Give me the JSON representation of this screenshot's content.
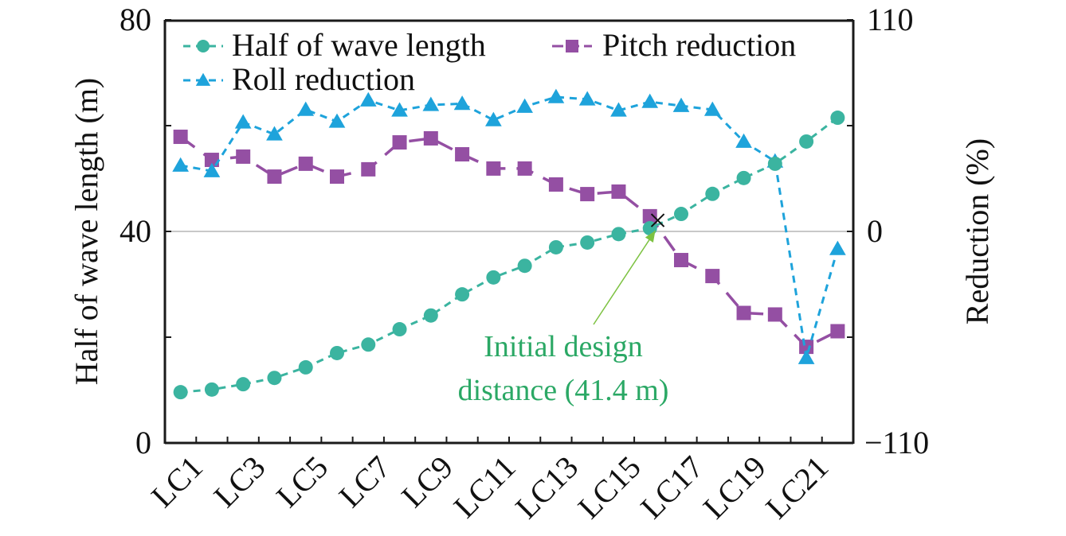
{
  "chart_data": {
    "type": "line",
    "title": "",
    "xlabel": "",
    "categories": [
      "LC1",
      "LC2",
      "LC3",
      "LC4",
      "LC5",
      "LC6",
      "LC7",
      "LC8",
      "LC9",
      "LC10",
      "LC11",
      "LC12",
      "LC13",
      "LC14",
      "LC15",
      "LC16",
      "LC17",
      "LC18",
      "LC19",
      "LC20",
      "LC21",
      "LC22"
    ],
    "x_tick_labels": [
      "LC1",
      "LC3",
      "LC5",
      "LC7",
      "LC9",
      "LC11",
      "LC13",
      "LC15",
      "LC17",
      "LC19",
      "LC21"
    ],
    "y_left": {
      "label": "Half of wave length (m)",
      "lim": [
        0,
        80
      ],
      "ticks": [
        0,
        20,
        40,
        60,
        80
      ],
      "tick_labels": [
        "0",
        "40",
        "80"
      ]
    },
    "y_right": {
      "label": "Reduction (%)",
      "lim": [
        -110,
        110
      ],
      "ticks": [
        -110,
        -55,
        0,
        55,
        110
      ],
      "tick_labels": [
        "−110",
        "0",
        "110"
      ]
    },
    "reference_line": {
      "axis": "right",
      "value": 0,
      "color": "#c8c8c8"
    },
    "series": [
      {
        "name": "Half of wave length",
        "axis": "left",
        "marker": "circle",
        "line": "dashed",
        "color": "#3bb4a0",
        "values": [
          9.6,
          10.1,
          11.1,
          12.3,
          14.3,
          17.0,
          18.6,
          21.5,
          24.1,
          28.1,
          31.3,
          33.5,
          37.0,
          37.9,
          39.5,
          40.6,
          43.3,
          47.1,
          50.1,
          52.8,
          57.0,
          61.5
        ]
      },
      {
        "name": "Pitch reduction",
        "axis": "right",
        "marker": "square",
        "line": "long-dash",
        "color": "#944fa3",
        "values": [
          49.2,
          37.2,
          38.9,
          28.5,
          35.2,
          28.5,
          32.3,
          46.3,
          48.4,
          40.1,
          32.7,
          32.7,
          24.4,
          19.4,
          20.7,
          7.9,
          -14.9,
          -23.2,
          -42.4,
          -43.2,
          -60.0,
          -51.9
        ]
      },
      {
        "name": "Roll reduction",
        "axis": "right",
        "marker": "triangle",
        "line": "dashed",
        "color": "#1ea3db",
        "values": [
          34.3,
          31.4,
          56.7,
          50.5,
          63.3,
          57.1,
          68.2,
          62.9,
          65.8,
          66.4,
          57.9,
          64.9,
          69.9,
          68.7,
          62.9,
          67.4,
          65.3,
          63.3,
          46.7,
          36.4,
          -65.8,
          -9.1
        ]
      }
    ],
    "legend": {
      "placement": "top-left",
      "entries": [
        "Half of wave length",
        "Pitch reduction",
        "Roll reduction"
      ]
    },
    "annotation": {
      "lines": [
        "Initial design",
        "distance (41.4 m)"
      ],
      "color": "#2ba865",
      "arrow_color": "#7dc242",
      "marker": "cross",
      "point_category_index": 15.25,
      "point_value_left": 42.1
    },
    "grid": false
  }
}
